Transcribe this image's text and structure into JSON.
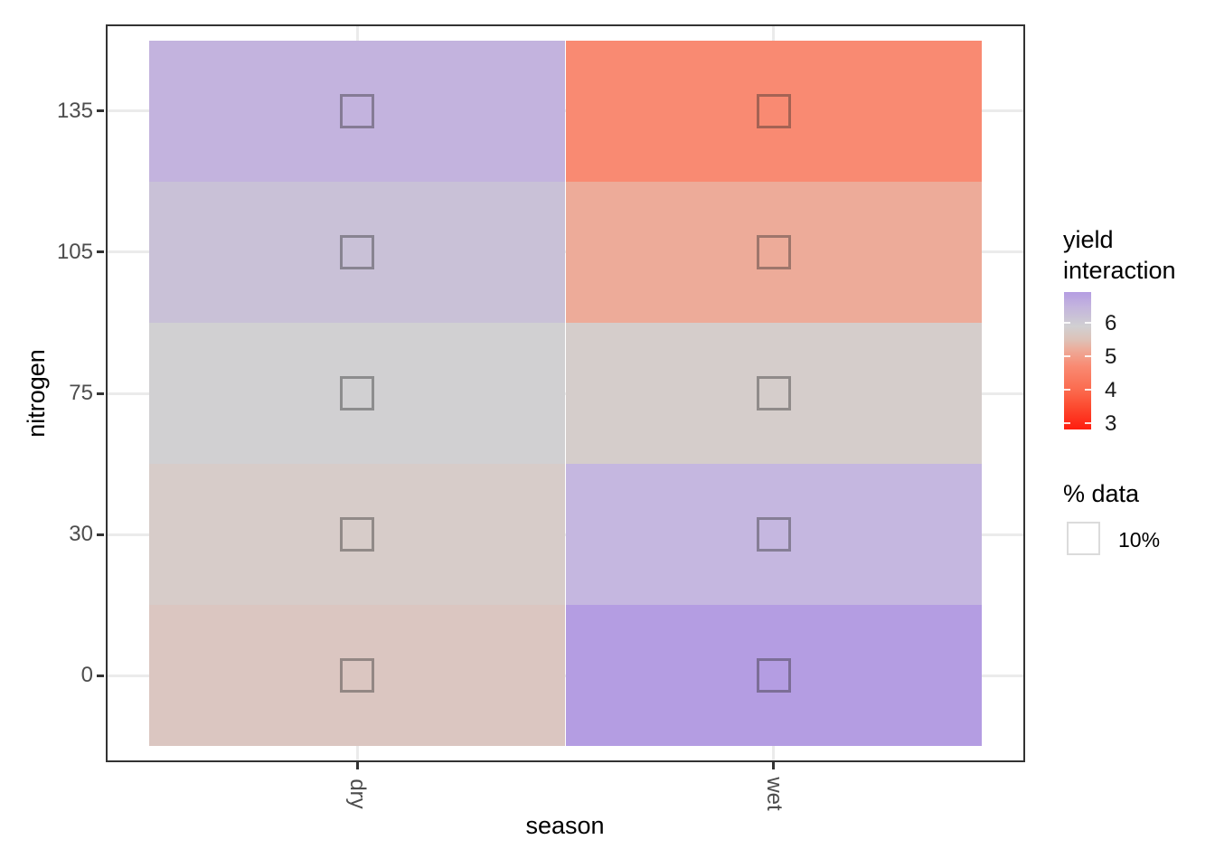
{
  "chart_data": {
    "type": "heatmap",
    "title": "",
    "xlabel": "season",
    "ylabel": "nitrogen",
    "columns": [
      "dry",
      "wet"
    ],
    "rows": [
      "135",
      "105",
      "75",
      "30",
      "0"
    ],
    "row_order": "top-to-bottom",
    "fill_variable": "yield interaction",
    "size_variable": "% data",
    "series": [
      {
        "name": "dry",
        "values_by_row": [
          6.5,
          6.2,
          5.9,
          5.8,
          5.7
        ]
      },
      {
        "name": "wet",
        "values_by_row": [
          4.7,
          5.2,
          5.9,
          6.4,
          6.9
        ]
      }
    ],
    "cell_colors": [
      [
        "#C3B3DE",
        "#F98A72"
      ],
      [
        "#C9C1D7",
        "#EDAB99"
      ],
      [
        "#D1D0D2",
        "#D5CDCB"
      ],
      [
        "#D7CCC9",
        "#C5B7E0"
      ],
      [
        "#DBC6C1",
        "#B49DE2"
      ]
    ],
    "cell_glyph_percent": "10%",
    "grid": true,
    "legend_position": "right",
    "fill_legend": {
      "title": "yield interaction",
      "ticks": [
        "6",
        "5",
        "4",
        "3"
      ],
      "tick_values": [
        6,
        5,
        4,
        3
      ],
      "domain_max": 6.92,
      "domain_min": 2.81,
      "gradient_stops": [
        [
          0,
          "#B49DE2"
        ],
        [
          10,
          "#C3B3DE"
        ],
        [
          17.5,
          "#C9C1D7"
        ],
        [
          25,
          "#D1D0D2"
        ],
        [
          34.5,
          "#DDC2B8"
        ],
        [
          42,
          "#EDAB99"
        ],
        [
          54,
          "#F98A72"
        ],
        [
          71,
          "#FB6B4F"
        ],
        [
          83,
          "#FC4C31"
        ],
        [
          100,
          "#FF1D0F"
        ]
      ]
    },
    "size_legend": {
      "title": "% data",
      "key_label": "10%"
    }
  },
  "colors": {
    "panel_border": "#333333",
    "gridline": "#EBEBEB",
    "tick_label": "#4D4D4D",
    "axis_title": "#000000",
    "cell_glyph_stroke": "rgba(40,40,40,0.4)",
    "legend_key_border": "#DBDBDB",
    "colorbar_tick": "rgba(255,255,255,0.85)"
  }
}
